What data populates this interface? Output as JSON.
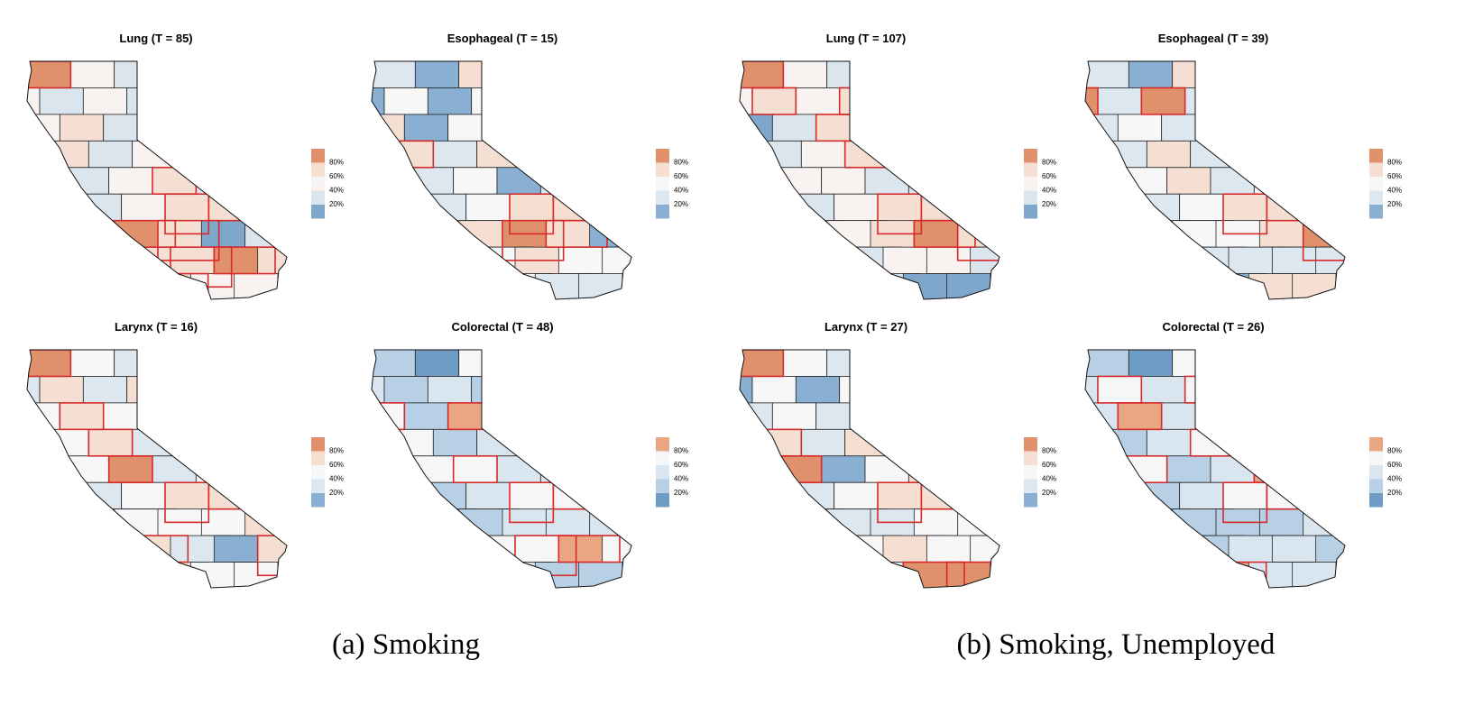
{
  "panels": [
    {
      "title": "Lung (T = 85)",
      "legend_labels": [
        "80%",
        "60%",
        "40%",
        "20%"
      ],
      "legend_colors": [
        "#e0916c",
        "#f5ded2",
        "#f8f3f1",
        "#dbe5ee",
        "#7fa7cb"
      ]
    },
    {
      "title": "Esophageal (T = 15)",
      "legend_labels": [
        "80%",
        "60%",
        "40%",
        "20%"
      ],
      "legend_colors": [
        "#e0916c",
        "#f5ded2",
        "#f7f7f8",
        "#dde7f0",
        "#89b0d3"
      ]
    },
    {
      "title": "Lung (T = 107)",
      "legend_labels": [
        "80%",
        "60%",
        "40%",
        "20%"
      ],
      "legend_colors": [
        "#e0916c",
        "#f5ded2",
        "#f8f3f1",
        "#dbe5ee",
        "#7fa7cb"
      ]
    },
    {
      "title": "Esophageal (T = 39)",
      "legend_labels": [
        "80%",
        "60%",
        "40%",
        "20%"
      ],
      "legend_colors": [
        "#e0916c",
        "#f5ded2",
        "#f7f7f8",
        "#dde7f0",
        "#89b0d3"
      ]
    },
    {
      "title": "Larynx (T = 16)",
      "legend_labels": [
        "80%",
        "60%",
        "40%",
        "20%"
      ],
      "legend_colors": [
        "#e0916c",
        "#f5ded2",
        "#f7f7f8",
        "#dde7f0",
        "#89b0d3"
      ]
    },
    {
      "title": "Colorectal (T = 48)",
      "legend_labels": [
        "80%",
        "60%",
        "40%",
        "20%"
      ],
      "legend_colors": [
        "#eaa583",
        "#f6f6f7",
        "#d9e5ef",
        "#b8d0e6",
        "#6f9cc5"
      ]
    },
    {
      "title": "Larynx (T = 27)",
      "legend_labels": [
        "80%",
        "60%",
        "40%",
        "20%"
      ],
      "legend_colors": [
        "#e0916c",
        "#f5ded2",
        "#f7f7f8",
        "#dde7f0",
        "#89b0d3"
      ]
    },
    {
      "title": "Colorectal (T = 26)",
      "legend_labels": [
        "80%",
        "60%",
        "40%",
        "20%"
      ],
      "legend_colors": [
        "#eaa583",
        "#f6f6f7",
        "#d9e5ef",
        "#b8d0e6",
        "#6f9cc5"
      ]
    }
  ],
  "captions": [
    "(a) Smoking",
    "(b) Smoking, Unemployed"
  ]
}
